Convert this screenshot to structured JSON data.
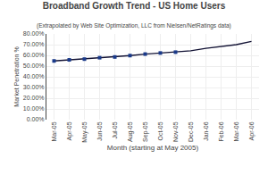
{
  "chart_data": {
    "type": "line",
    "title": "Broadband Growth Trend - US Home Users",
    "subtitle": "(Extrapolated by Web Site Optimization, LLC from Nielsen/NetRatings data)",
    "xlabel": "Month (starting at May 2005)",
    "ylabel": "Market Penetration %",
    "categories": [
      "Mar-05",
      "Apr-05",
      "May-05",
      "Jun-05",
      "Jul-05",
      "Aug-05",
      "Sep-05",
      "Oct-05",
      "Nov-05",
      "Dec-05",
      "Jan-06",
      "Feb-06",
      "Mar-06",
      "Apr-06"
    ],
    "series": [
      {
        "type": "line",
        "color": "#111133",
        "line_style": "solid",
        "values": [
          0.548,
          0.558,
          0.565,
          0.578,
          0.585,
          0.598,
          0.612,
          0.622,
          0.63,
          0.643,
          0.665,
          0.68,
          0.7,
          0.73
        ]
      },
      {
        "type": "scatter",
        "marker": "square",
        "color": "#1a3a8a",
        "values": [
          0.548,
          0.558,
          0.565,
          0.578,
          0.585,
          0.598,
          0.612,
          0.622,
          0.63,
          null,
          null,
          null,
          null,
          null
        ]
      }
    ],
    "ylim": [
      0.0,
      0.8
    ],
    "yticks": [
      {
        "value": 0.0,
        "label": "0.00%"
      },
      {
        "value": 0.1,
        "label": "10.00%"
      },
      {
        "value": 0.2,
        "label": "20.00%"
      },
      {
        "value": 0.3,
        "label": "30.00%"
      },
      {
        "value": 0.4,
        "label": "40.00%"
      },
      {
        "value": 0.5,
        "label": "50.00%"
      },
      {
        "value": 0.6,
        "label": "60.00%"
      },
      {
        "value": 0.7,
        "label": "70.00%"
      },
      {
        "value": 0.8,
        "label": "80.00%"
      }
    ],
    "grid": true
  }
}
